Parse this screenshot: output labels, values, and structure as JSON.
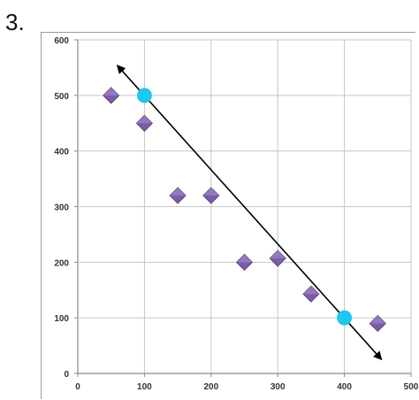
{
  "problem_label": "3.",
  "colors": {
    "grid": "#c6c6c6",
    "axis": "#8a8a8a",
    "marker_fill": "#7b5ea7",
    "marker_light": "#a990cf",
    "marker_dark": "#4d3573",
    "highlight_point": "#1ec7ee",
    "trend_line": "#000000"
  },
  "chart_data": {
    "type": "scatter",
    "title": "",
    "xlabel": "",
    "ylabel": "",
    "xlim": [
      0,
      500
    ],
    "ylim": [
      0,
      600
    ],
    "x_ticks": [
      0,
      100,
      200,
      300,
      400,
      500
    ],
    "y_ticks": [
      0,
      100,
      200,
      300,
      400,
      500,
      600
    ],
    "grid": true,
    "marker": "diamond",
    "points": [
      {
        "x": 50,
        "y": 500
      },
      {
        "x": 100,
        "y": 450
      },
      {
        "x": 150,
        "y": 320
      },
      {
        "x": 200,
        "y": 320
      },
      {
        "x": 250,
        "y": 200
      },
      {
        "x": 300,
        "y": 207
      },
      {
        "x": 350,
        "y": 143
      },
      {
        "x": 450,
        "y": 90
      }
    ],
    "highlighted_points": [
      {
        "x": 100,
        "y": 500
      },
      {
        "x": 400,
        "y": 100
      }
    ],
    "trend_line": {
      "from": {
        "x": 60,
        "y": 553
      },
      "to": {
        "x": 455,
        "y": 26
      },
      "arrows": "both"
    }
  }
}
